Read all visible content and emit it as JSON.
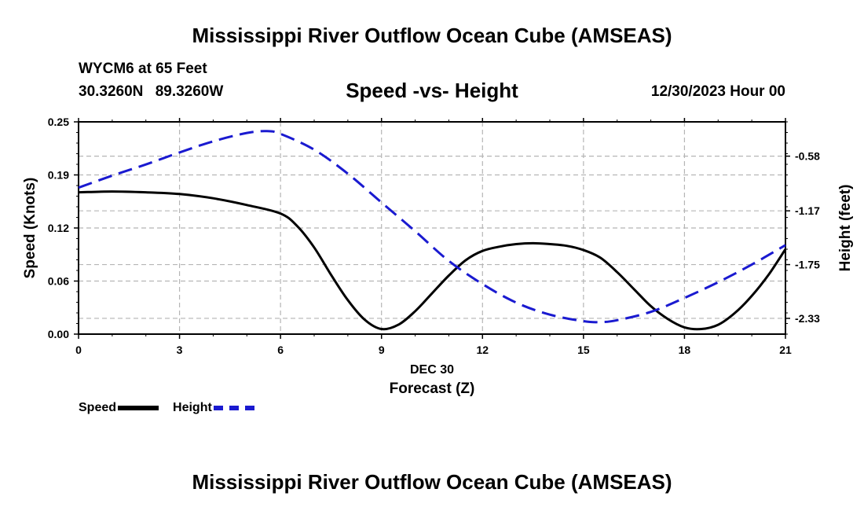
{
  "header": {
    "title": "Mississippi River Outflow Ocean Cube (AMSEAS)",
    "station": "WYCM6 at 65 Feet",
    "lat": "30.3260N",
    "lon": "89.3260W",
    "subtitle": "Speed -vs- Height",
    "datetime": "12/30/2023 Hour 00"
  },
  "footer": {
    "title": "Mississippi River Outflow Ocean Cube (AMSEAS)"
  },
  "legend": {
    "speed_label": "Speed",
    "height_label": "Height"
  },
  "colors": {
    "speed": "#000000",
    "height": "#1a1ad0",
    "grid": "#b5b5b5"
  },
  "chart_data": {
    "type": "line",
    "title": "Speed -vs- Height",
    "xlabel": "Forecast (Z)",
    "xlabel_date": "DEC 30",
    "ylabel_left": "Speed (Knots)",
    "ylabel_right": "Height (feet)",
    "xlim": [
      0,
      21
    ],
    "x_ticks": [
      0,
      3,
      6,
      9,
      12,
      15,
      18,
      21
    ],
    "ylim_left": [
      0,
      0.25
    ],
    "y_ticks_left": [
      "0.00",
      "0.06",
      "0.12",
      "0.19",
      "0.25"
    ],
    "y_ticks_left_values": [
      0,
      0.0625,
      0.125,
      0.1875,
      0.25
    ],
    "ylim_right": [
      -2.5,
      -0.21
    ],
    "y_ticks_right": [
      "-0.58",
      "-1.17",
      "-1.75",
      "-2.33"
    ],
    "y_ticks_right_values": [
      -0.58,
      -1.17,
      -1.75,
      -2.33
    ],
    "grid": true,
    "series": [
      {
        "name": "Speed",
        "axis": "left",
        "style": "solid",
        "x": [
          0,
          1,
          2,
          3,
          4,
          5,
          6,
          6.5,
          7,
          7.5,
          8,
          8.5,
          9,
          9.5,
          10,
          10.5,
          11,
          11.5,
          12,
          12.5,
          13,
          13.5,
          14,
          14.5,
          15,
          15.5,
          16,
          16.5,
          17,
          17.5,
          18,
          18.5,
          19,
          19.5,
          20,
          20.5,
          21
        ],
        "values": [
          0.167,
          0.168,
          0.167,
          0.165,
          0.16,
          0.152,
          0.142,
          0.127,
          0.102,
          0.07,
          0.04,
          0.017,
          0.006,
          0.011,
          0.027,
          0.048,
          0.069,
          0.087,
          0.098,
          0.103,
          0.106,
          0.107,
          0.106,
          0.104,
          0.099,
          0.09,
          0.073,
          0.053,
          0.033,
          0.018,
          0.008,
          0.006,
          0.011,
          0.025,
          0.045,
          0.07,
          0.1
        ]
      },
      {
        "name": "Height",
        "axis": "right",
        "style": "dashed",
        "x": [
          0,
          1,
          2,
          3,
          4,
          5,
          5.6,
          6,
          7,
          8,
          9,
          10,
          11,
          12,
          13,
          14,
          15,
          15.5,
          16,
          17,
          18,
          19,
          20,
          21
        ],
        "values": [
          -0.92,
          -0.79,
          -0.67,
          -0.54,
          -0.42,
          -0.33,
          -0.31,
          -0.34,
          -0.51,
          -0.77,
          -1.08,
          -1.39,
          -1.71,
          -1.96,
          -2.16,
          -2.29,
          -2.36,
          -2.37,
          -2.35,
          -2.26,
          -2.11,
          -1.94,
          -1.75,
          -1.54
        ]
      }
    ]
  }
}
